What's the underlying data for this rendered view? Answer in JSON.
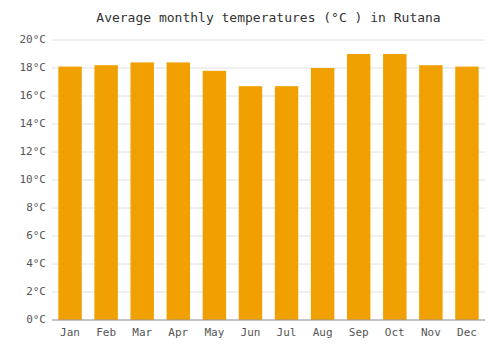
{
  "chart_data": {
    "type": "bar",
    "title": "Average monthly temperatures (°C ) in Rutana",
    "categories": [
      "Jan",
      "Feb",
      "Mar",
      "Apr",
      "May",
      "Jun",
      "Jul",
      "Aug",
      "Sep",
      "Oct",
      "Nov",
      "Dec"
    ],
    "values": [
      18.1,
      18.2,
      18.4,
      18.4,
      17.8,
      16.7,
      16.7,
      18.0,
      19.0,
      19.0,
      18.2,
      18.1
    ],
    "color": "#F0A000",
    "ylim": [
      0,
      20
    ],
    "yticks": [
      {
        "value": 0,
        "label": "0°C"
      },
      {
        "value": 2,
        "label": "2°C"
      },
      {
        "value": 4,
        "label": "4°C"
      },
      {
        "value": 6,
        "label": "6°C"
      },
      {
        "value": 8,
        "label": "8°C"
      },
      {
        "value": 10,
        "label": "10°C"
      },
      {
        "value": 12,
        "label": "12°C"
      },
      {
        "value": 14,
        "label": "14°C"
      },
      {
        "value": 16,
        "label": "16°C"
      },
      {
        "value": 18,
        "label": "18°C"
      },
      {
        "value": 20,
        "label": "20°C"
      }
    ],
    "grid": true
  }
}
